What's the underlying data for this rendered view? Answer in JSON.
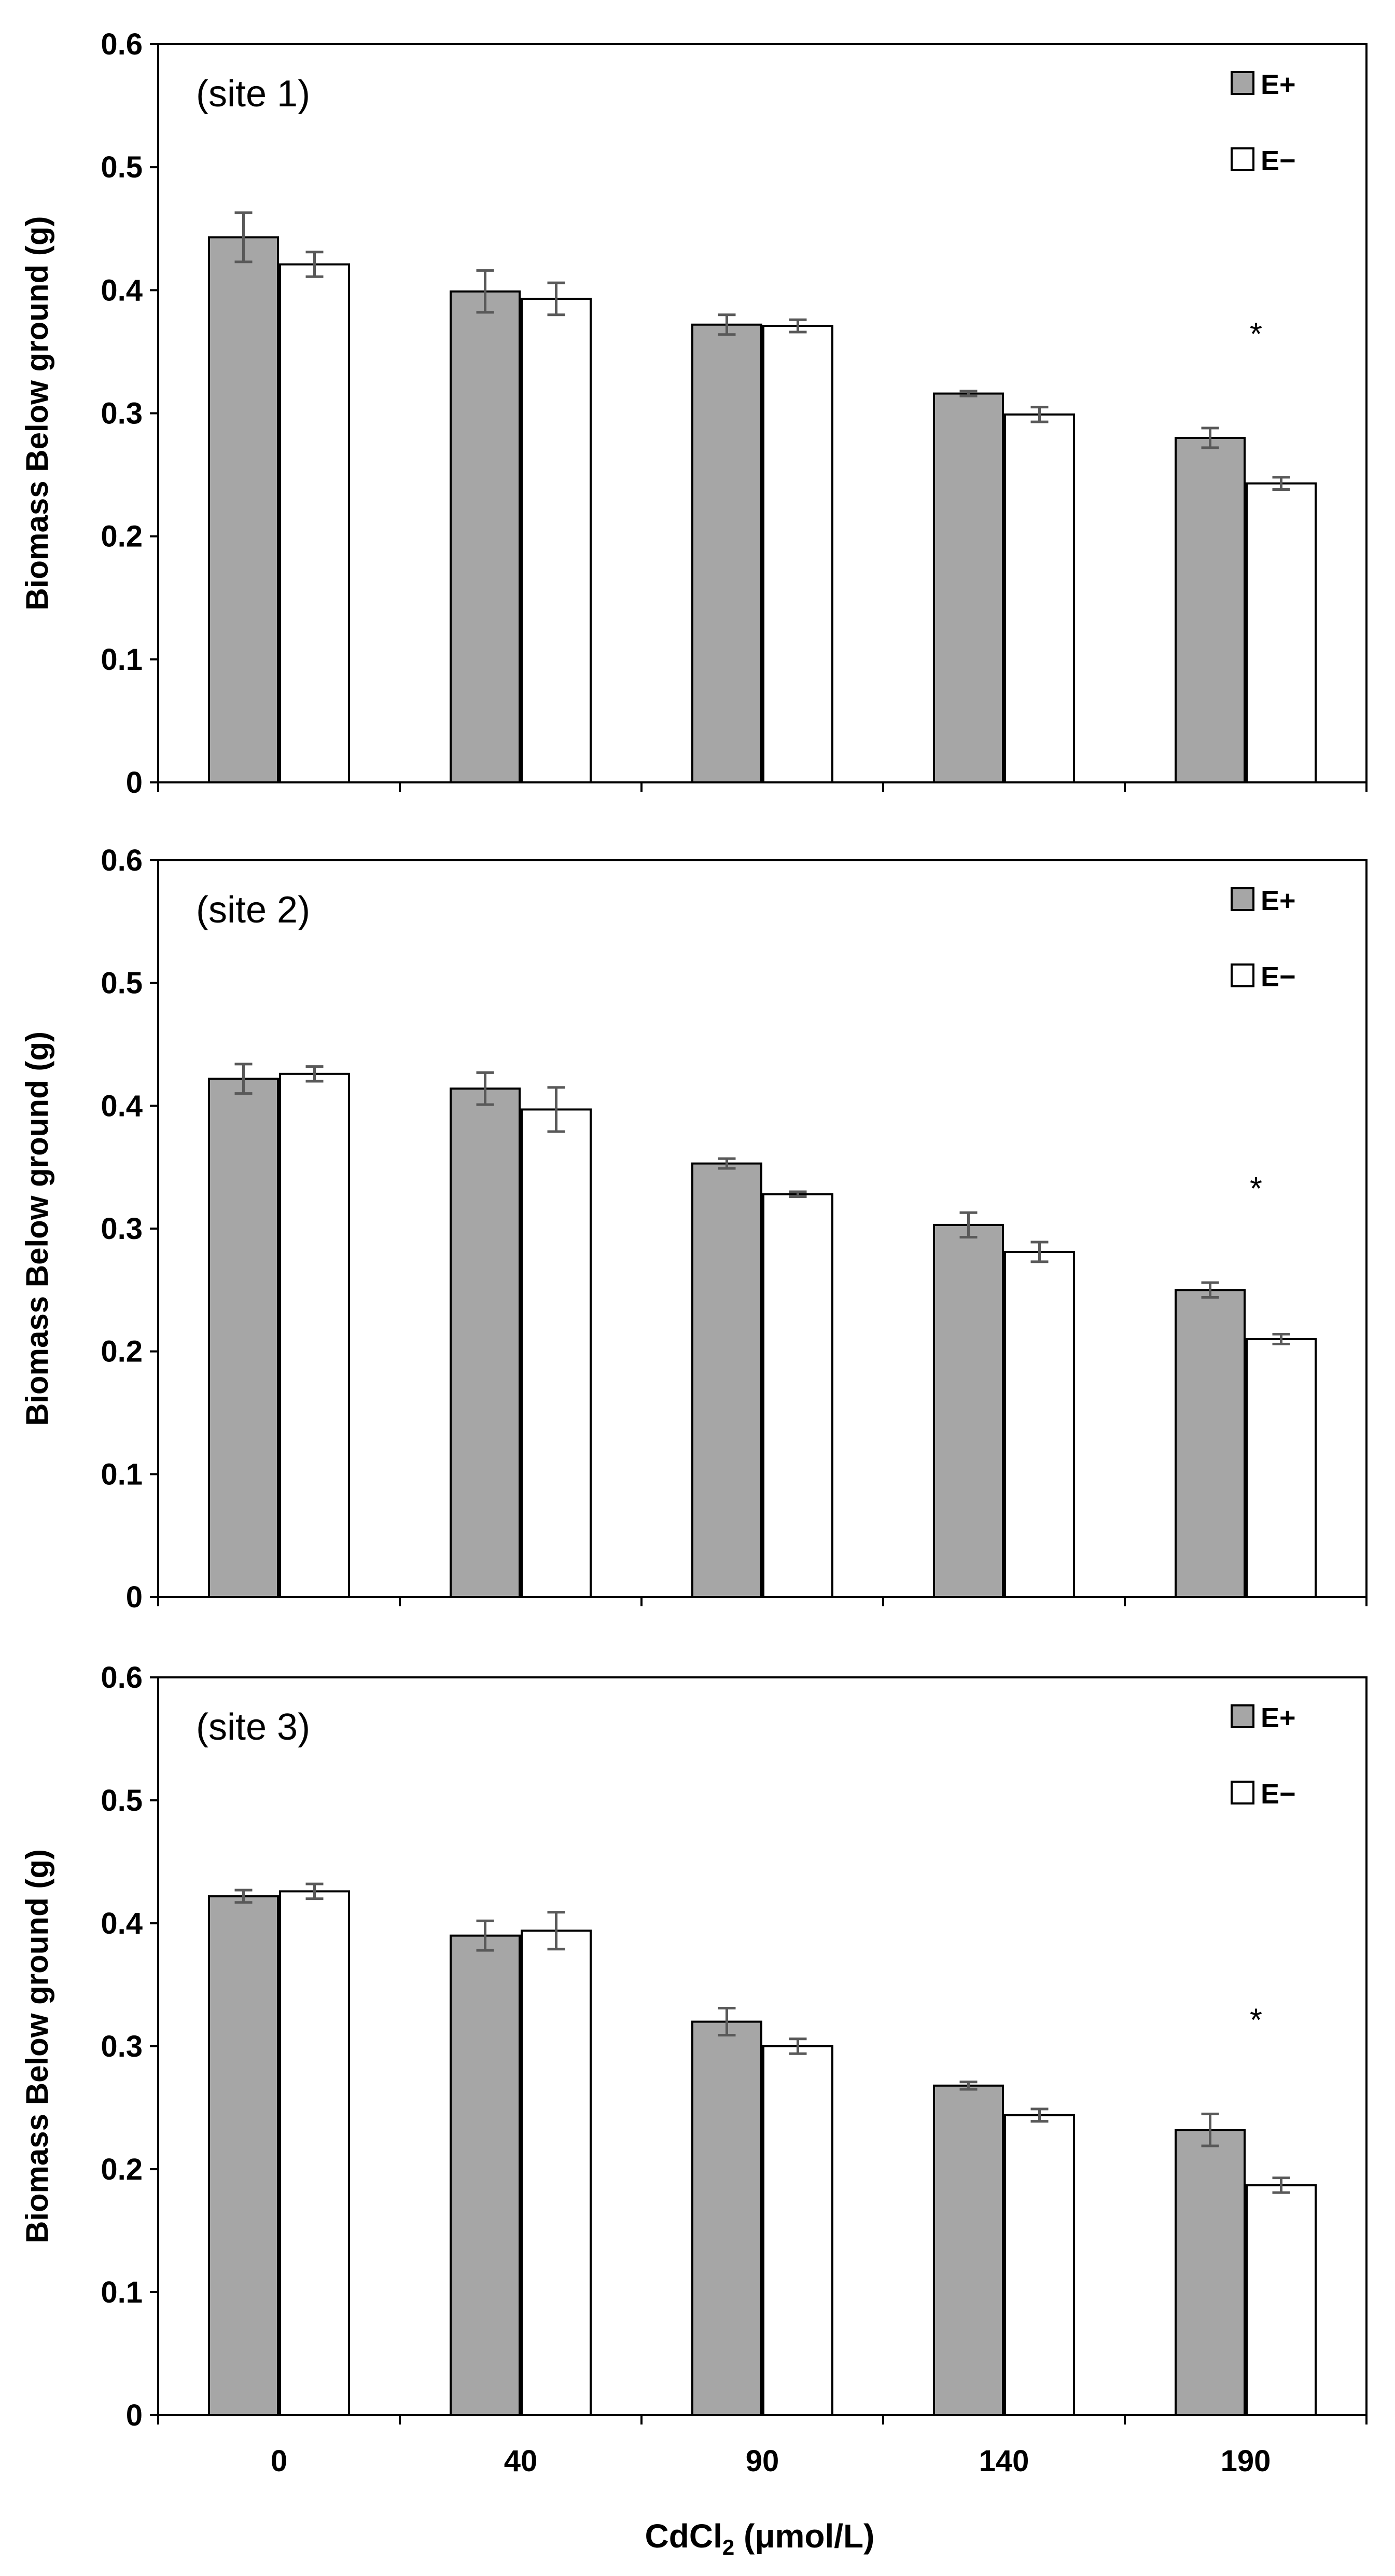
{
  "colors": {
    "e_plus": "#a6a6a6",
    "e_minus": "#ffffff",
    "outline": "#000000",
    "error_bar": "#595959",
    "axis": "#000000"
  },
  "xlabel_main": "CdCl",
  "xlabel_sub": "2",
  "xlabel_rest": " (μmol/L)",
  "chart_data": [
    {
      "type": "bar",
      "panel_label": "(site 1)",
      "ylabel": "Biomass Below ground (g)",
      "ylim": [
        0,
        0.6
      ],
      "yticks": [
        "0",
        "0.1",
        "0.2",
        "0.3",
        "0.4",
        "0.5",
        "0.6"
      ],
      "categories": [
        "0",
        "40",
        "90",
        "140",
        "190"
      ],
      "legend": [
        "E+",
        "E−"
      ],
      "legend_position": "top-right",
      "series": [
        {
          "name": "E+",
          "values": [
            0.443,
            0.399,
            0.372,
            0.316,
            0.28
          ],
          "errors": [
            0.02,
            0.017,
            0.008,
            0.002,
            0.008
          ]
        },
        {
          "name": "E−",
          "values": [
            0.421,
            0.393,
            0.371,
            0.299,
            0.243
          ],
          "errors": [
            0.01,
            0.013,
            0.005,
            0.006,
            0.005
          ]
        }
      ],
      "significance": [
        {
          "category": "190",
          "label": "*"
        }
      ]
    },
    {
      "type": "bar",
      "panel_label": "(site 2)",
      "ylabel": "Biomass Below ground (g)",
      "ylim": [
        0,
        0.6
      ],
      "yticks": [
        "0",
        "0.1",
        "0.2",
        "0.3",
        "0.4",
        "0.5",
        "0.6"
      ],
      "categories": [
        "0",
        "40",
        "90",
        "140",
        "190"
      ],
      "legend": [
        "E+",
        "E−"
      ],
      "legend_position": "top-right",
      "series": [
        {
          "name": "E+",
          "values": [
            0.422,
            0.414,
            0.353,
            0.303,
            0.25
          ],
          "errors": [
            0.012,
            0.013,
            0.004,
            0.01,
            0.006
          ]
        },
        {
          "name": "E−",
          "values": [
            0.426,
            0.397,
            0.328,
            0.281,
            0.21
          ],
          "errors": [
            0.006,
            0.018,
            0.002,
            0.008,
            0.004
          ]
        }
      ],
      "significance": [
        {
          "category": "190",
          "label": "*"
        }
      ]
    },
    {
      "type": "bar",
      "panel_label": "(site 3)",
      "ylabel": "Biomass Below ground (g)",
      "ylim": [
        0,
        0.6
      ],
      "yticks": [
        "0",
        "0.1",
        "0.2",
        "0.3",
        "0.4",
        "0.5",
        "0.6"
      ],
      "categories": [
        "0",
        "40",
        "90",
        "140",
        "190"
      ],
      "legend": [
        "E+",
        "E−"
      ],
      "legend_position": "top-right",
      "series": [
        {
          "name": "E+",
          "values": [
            0.422,
            0.39,
            0.32,
            0.268,
            0.232
          ],
          "errors": [
            0.005,
            0.012,
            0.011,
            0.003,
            0.013
          ]
        },
        {
          "name": "E−",
          "values": [
            0.426,
            0.394,
            0.3,
            0.244,
            0.187
          ],
          "errors": [
            0.006,
            0.015,
            0.006,
            0.005,
            0.006
          ]
        }
      ],
      "significance": [
        {
          "category": "190",
          "label": "*"
        }
      ]
    }
  ]
}
